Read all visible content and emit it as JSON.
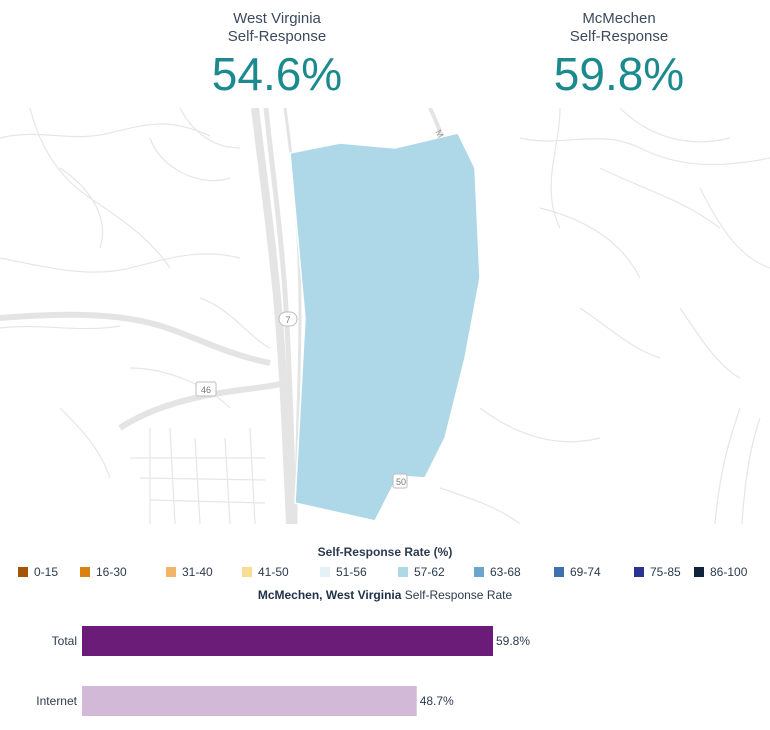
{
  "header": {
    "state": {
      "label_line1": "West Virginia",
      "label_line2": "Self-Response",
      "value": "54.6%"
    },
    "place": {
      "label_line1": "McMechen",
      "label_line2": "Self-Response",
      "value": "59.8%"
    }
  },
  "map": {
    "road_labels": [
      "7",
      "46",
      "50",
      "M"
    ],
    "polygon_color": "#aed8e8"
  },
  "legend": {
    "title": "Self-Response Rate (%)",
    "items": [
      {
        "label": "0-15",
        "color": "#a35406"
      },
      {
        "label": "16-30",
        "color": "#d9820f"
      },
      {
        "label": "31-40",
        "color": "#f2b466"
      },
      {
        "label": "41-50",
        "color": "#f9dd95"
      },
      {
        "label": "51-56",
        "color": "#e4f1f6"
      },
      {
        "label": "57-62",
        "color": "#aed8e8"
      },
      {
        "label": "63-68",
        "color": "#6aa6cc"
      },
      {
        "label": "69-74",
        "color": "#3f72ac"
      },
      {
        "label": "75-85",
        "color": "#2b3490"
      },
      {
        "label": "86-100",
        "color": "#10233d"
      }
    ]
  },
  "chart_title": {
    "bold": "McMechen, West Virginia",
    "rest": " Self-Response Rate"
  },
  "chart_data": {
    "type": "bar",
    "orientation": "horizontal",
    "categories": [
      "Total",
      "Internet"
    ],
    "values": [
      59.8,
      48.7
    ],
    "value_labels": [
      "59.8%",
      "48.7%"
    ],
    "colors": [
      "#6a1c78",
      "#d2b9d8"
    ],
    "xlim": [
      0,
      100
    ]
  }
}
